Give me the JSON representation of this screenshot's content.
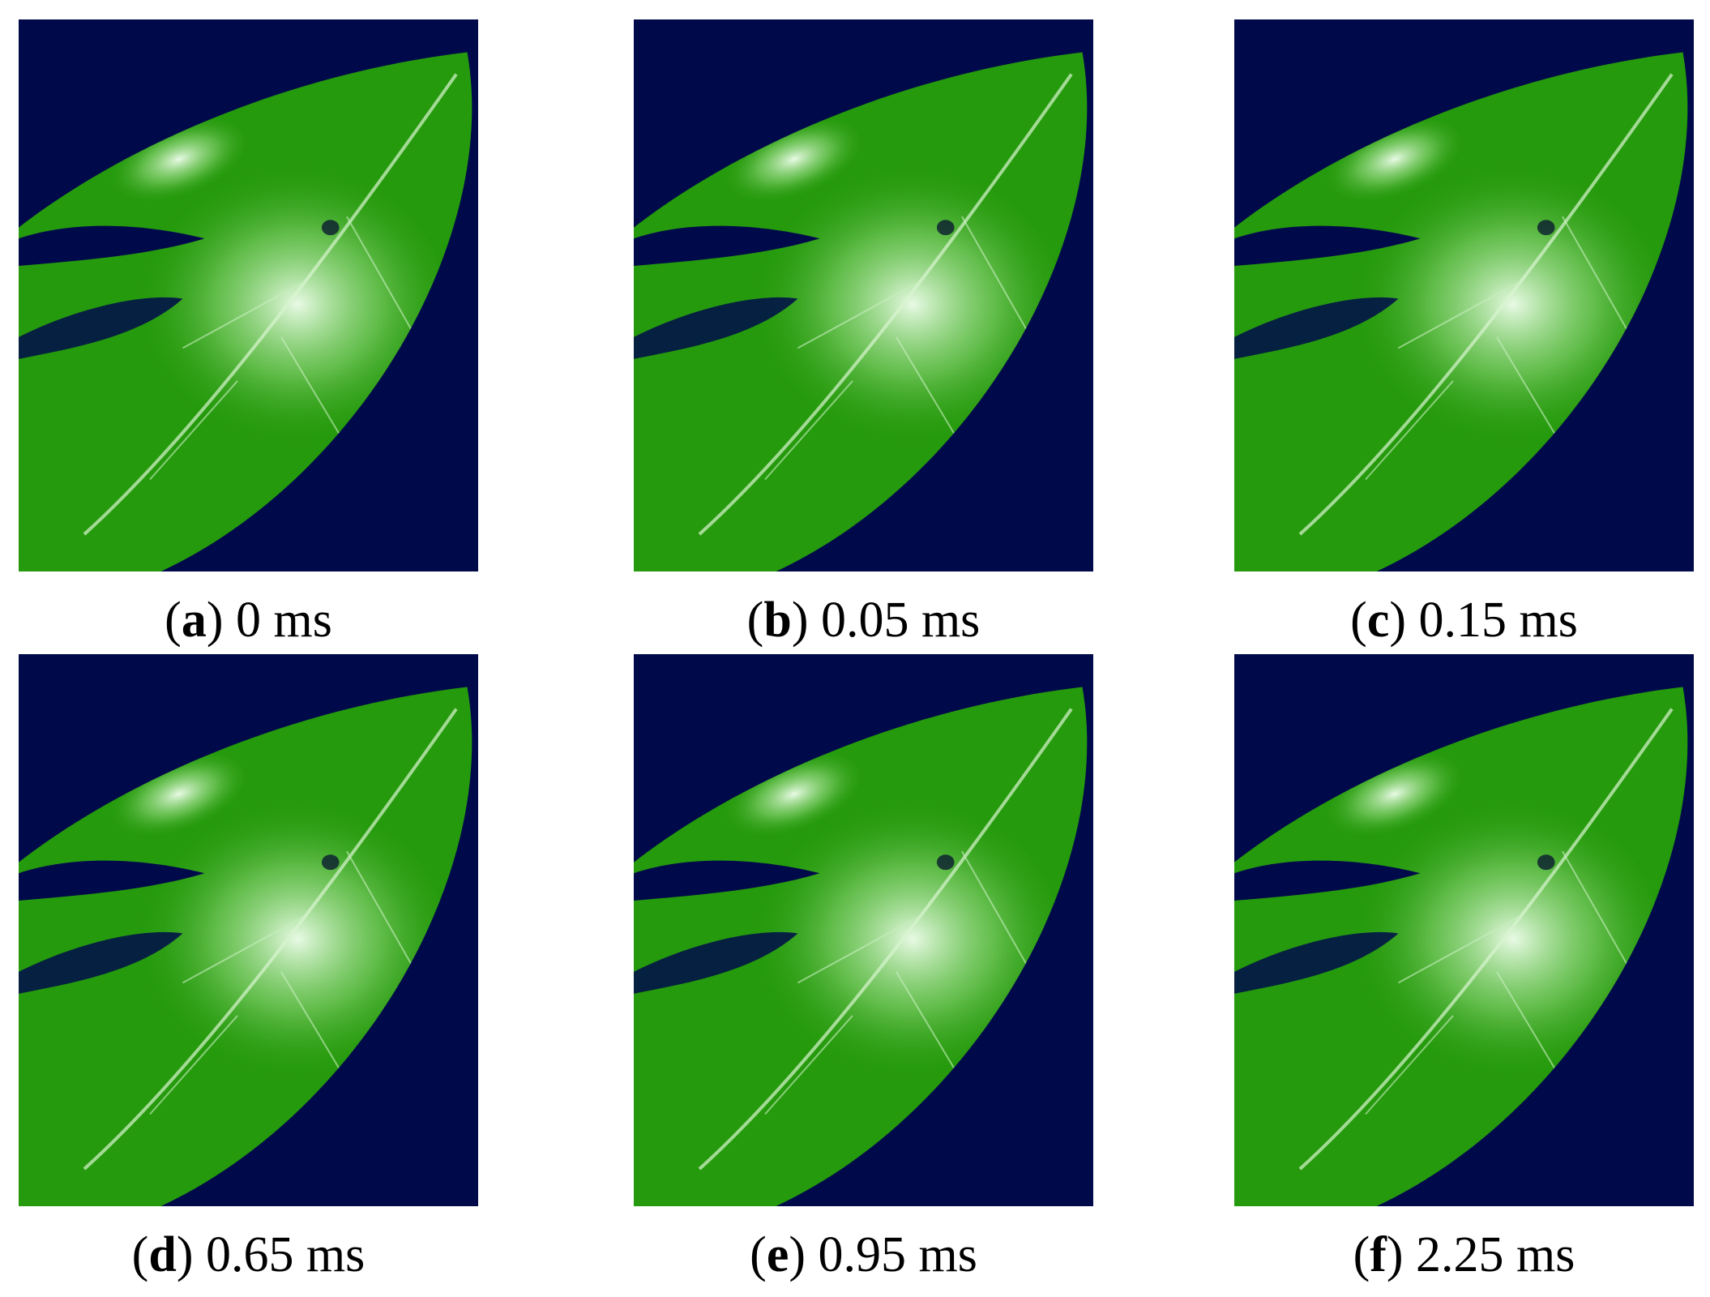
{
  "panels": [
    {
      "prefix": "(",
      "letter": "a",
      "suffix": ") 0 ms"
    },
    {
      "prefix": "(",
      "letter": "b",
      "suffix": ") 0.05 ms"
    },
    {
      "prefix": "(",
      "letter": "c",
      "suffix": ") 0.15 ms"
    },
    {
      "prefix": "(",
      "letter": "d",
      "suffix": ") 0.65 ms"
    },
    {
      "prefix": "(",
      "letter": "e",
      "suffix": ") 0.95 ms"
    },
    {
      "prefix": "(",
      "letter": "f",
      "suffix": ") 2.25 ms"
    }
  ]
}
